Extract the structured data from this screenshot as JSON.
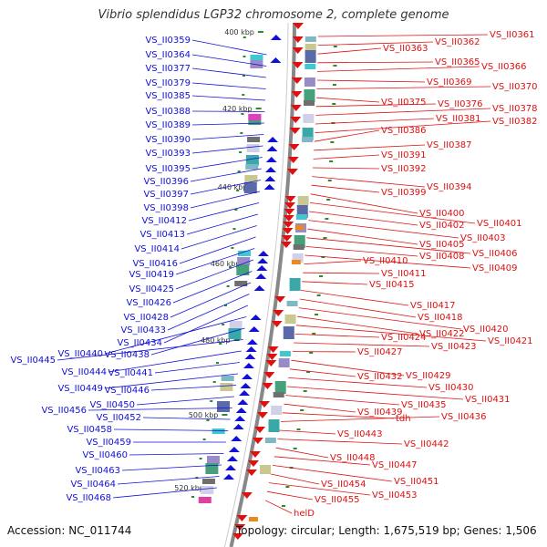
{
  "header": {
    "title": "Vibrio splendidus LGP32 chromosome 2, complete genome"
  },
  "footer": {
    "accession": "Accession: NC_011744",
    "summary": "Topology: circular; Length: 1,675,519 bp; Genes: 1,506"
  },
  "colors": {
    "minus_strand": "#1010d8",
    "plus_strand": "#e01010",
    "backbone": "#888888",
    "tick": "#2a8a2a"
  },
  "kbp_marks": [
    "400 kbp",
    "420 kbp",
    "440 kbp",
    "460 kbp",
    "480 kbp",
    "500 kbp",
    "520 kbp"
  ],
  "left_genes": [
    "VS_II0359",
    "VS_II0364",
    "VS_II0377",
    "VS_II0379",
    "VS_II0385",
    "VS_II0388",
    "VS_II0389",
    "VS_II0390",
    "VS_II0393",
    "VS_II0395",
    "VS_II0396",
    "VS_II0397",
    "VS_II0398",
    "VS_II0412",
    "VS_II0413",
    "VS_II0414",
    "VS_II0416",
    "VS_II0419",
    "VS_II0425",
    "VS_II0426",
    "VS_II0428",
    "VS_II0433",
    "VS_II0434",
    "VS_II0440",
    "VS_II0438",
    "VS_II0445",
    "VS_II0444",
    "VS_II0441",
    "VS_II0449",
    "VS_II0446",
    "VS_II0450",
    "VS_II0456",
    "VS_II0452",
    "VS_II0458",
    "VS_II0459",
    "VS_II0460",
    "VS_II0463",
    "VS_II0464",
    "VS_II0468"
  ],
  "right_genes": [
    "VS_II0361",
    "VS_II0362",
    "VS_II0363",
    "VS_II0365",
    "VS_II0366",
    "VS_II0369",
    "VS_II0370",
    "VS_II0375",
    "VS_II0376",
    "VS_II0378",
    "VS_II0381",
    "VS_II0382",
    "VS_II0386",
    "VS_II0387",
    "VS_II0391",
    "VS_II0392",
    "VS_II0394",
    "VS_II0399",
    "VS_II0400",
    "VS_II0401",
    "VS_II0402",
    "VS_II0403",
    "VS_II0405",
    "VS_II0406",
    "VS_II0408",
    "VS_II0409",
    "VS_II0410",
    "VS_II0411",
    "VS_II0415",
    "VS_II0417",
    "VS_II0418",
    "VS_II0420",
    "VS_II0422",
    "VS_II0421",
    "VS_II0424",
    "VS_II0423",
    "VS_II0427",
    "VS_II0429",
    "VS_II0432",
    "VS_II0430",
    "VS_II0431",
    "VS_II0435",
    "VS_II0439",
    "tdh",
    "VS_II0436",
    "VS_II0443",
    "VS_II0442",
    "VS_II0448",
    "VS_II0447",
    "VS_II0451",
    "VS_II0454",
    "VS_II0453",
    "VS_II0455",
    "helD"
  ]
}
